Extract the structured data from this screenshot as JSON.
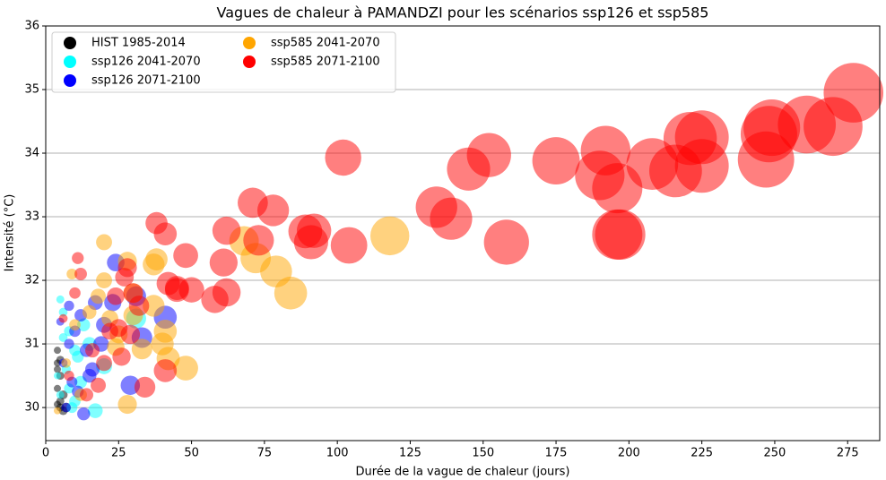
{
  "chart_data": {
    "type": "scatter",
    "title": "Vagues de chaleur à PAMANDZI pour les scénarios ssp126 et ssp585",
    "xlabel": "Durée de la vague de chaleur (jours)",
    "ylabel": "Intensité (°C)",
    "xlim": [
      0,
      286
    ],
    "ylim": [
      29.48,
      36
    ],
    "xticks": [
      0,
      25,
      50,
      75,
      100,
      125,
      150,
      175,
      200,
      225,
      250,
      275
    ],
    "yticks": [
      30,
      31,
      32,
      33,
      34,
      35,
      36
    ],
    "grid": "y",
    "legend": "upper left",
    "series": [
      {
        "name": "HIST 1985-2014",
        "color": "#000000",
        "x": [
          4,
          4,
          5,
          5,
          6,
          4,
          5,
          7,
          4,
          6,
          5,
          4
        ],
        "y": [
          30.6,
          30.7,
          30.1,
          30.0,
          29.95,
          30.3,
          30.5,
          30.0,
          30.9,
          30.2,
          30.75,
          30.05
        ]
      },
      {
        "name": "ssp126 2041-2070",
        "color": "#00ffff",
        "x": [
          5,
          6,
          8,
          10,
          7,
          12,
          5,
          9,
          15,
          17,
          20,
          6,
          11,
          13,
          8,
          31,
          4,
          10
        ],
        "y": [
          31.7,
          31.5,
          31.2,
          30.9,
          30.6,
          30.4,
          30.2,
          30.0,
          31.0,
          29.95,
          30.65,
          31.1,
          30.8,
          31.3,
          30.3,
          31.4,
          30.5,
          30.1
        ]
      },
      {
        "name": "ssp126 2071-2100",
        "color": "#0000ff",
        "x": [
          24,
          41,
          31,
          33,
          29,
          23,
          17,
          12,
          10,
          8,
          14,
          6,
          9,
          11,
          7,
          13,
          19,
          16,
          20,
          5,
          8,
          15
        ],
        "y": [
          32.28,
          31.42,
          31.75,
          31.1,
          30.35,
          31.65,
          31.65,
          31.45,
          31.2,
          31.0,
          30.9,
          30.7,
          30.4,
          30.25,
          30.0,
          29.9,
          31.0,
          30.6,
          31.3,
          31.35,
          31.6,
          30.5
        ]
      },
      {
        "name": "ssp585 2041-2070",
        "color": "#ffa500",
        "x": [
          68,
          72,
          79,
          84,
          118,
          37,
          38,
          20,
          28,
          41,
          40,
          48,
          42,
          33,
          30,
          37,
          25,
          18,
          15,
          24,
          10,
          7,
          12,
          4,
          28,
          22,
          20,
          9,
          30
        ],
        "y": [
          32.62,
          32.35,
          32.14,
          31.8,
          32.7,
          32.25,
          32.33,
          32.6,
          32.3,
          31.2,
          31.0,
          30.62,
          30.77,
          30.92,
          31.8,
          31.6,
          31.15,
          31.75,
          31.5,
          30.95,
          31.3,
          30.7,
          30.2,
          29.95,
          30.05,
          31.4,
          32.0,
          32.1,
          31.45
        ]
      },
      {
        "name": "ssp585 2071-2100",
        "color": "#ff0000",
        "x": [
          277,
          261,
          270,
          249,
          248,
          247,
          225,
          221,
          225,
          216,
          208,
          192,
          190,
          196,
          196,
          197,
          175,
          152,
          145,
          158,
          134,
          139,
          102,
          104,
          92,
          89,
          91,
          78,
          71,
          73,
          62,
          61,
          62,
          58,
          48,
          50,
          45,
          45,
          41,
          38,
          42,
          32,
          30,
          28,
          27,
          24,
          22,
          20,
          26,
          34,
          41,
          11,
          12,
          16,
          10,
          8,
          14,
          18,
          25,
          29,
          6
        ],
        "y": [
          34.95,
          34.45,
          34.42,
          34.4,
          34.3,
          33.9,
          34.25,
          34.23,
          33.8,
          33.72,
          33.83,
          34.04,
          33.65,
          33.45,
          32.72,
          32.72,
          33.88,
          33.97,
          33.75,
          32.6,
          33.15,
          32.97,
          33.93,
          32.55,
          32.78,
          32.77,
          32.6,
          33.1,
          33.22,
          32.63,
          32.78,
          32.28,
          31.81,
          31.7,
          32.39,
          31.85,
          31.85,
          31.88,
          32.73,
          32.9,
          31.95,
          31.6,
          31.8,
          32.2,
          32.05,
          31.75,
          31.2,
          30.7,
          30.8,
          30.32,
          30.58,
          32.35,
          32.1,
          30.9,
          31.8,
          30.5,
          30.2,
          30.35,
          31.25,
          31.15,
          31.4
        ]
      }
    ]
  }
}
